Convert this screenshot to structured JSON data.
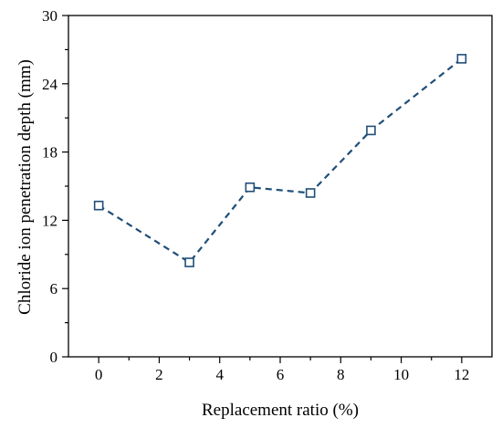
{
  "chart_data": {
    "type": "line",
    "xlabel": "Replacement ratio (%)",
    "ylabel": "Chloride ion penetration depth (mm)",
    "xlim": [
      -1,
      13
    ],
    "ylim": [
      0,
      30
    ],
    "x_ticks": [
      0,
      2,
      4,
      6,
      8,
      10,
      12
    ],
    "y_ticks": [
      0,
      6,
      12,
      18,
      24,
      30
    ],
    "grid": false,
    "series": [
      {
        "x": [
          0,
          3,
          5,
          7,
          9,
          12
        ],
        "values": [
          13.3,
          8.3,
          14.9,
          14.4,
          19.9,
          26.2
        ],
        "line_style": "dashed",
        "marker": "open-square",
        "color": "#1f4e79"
      }
    ]
  }
}
